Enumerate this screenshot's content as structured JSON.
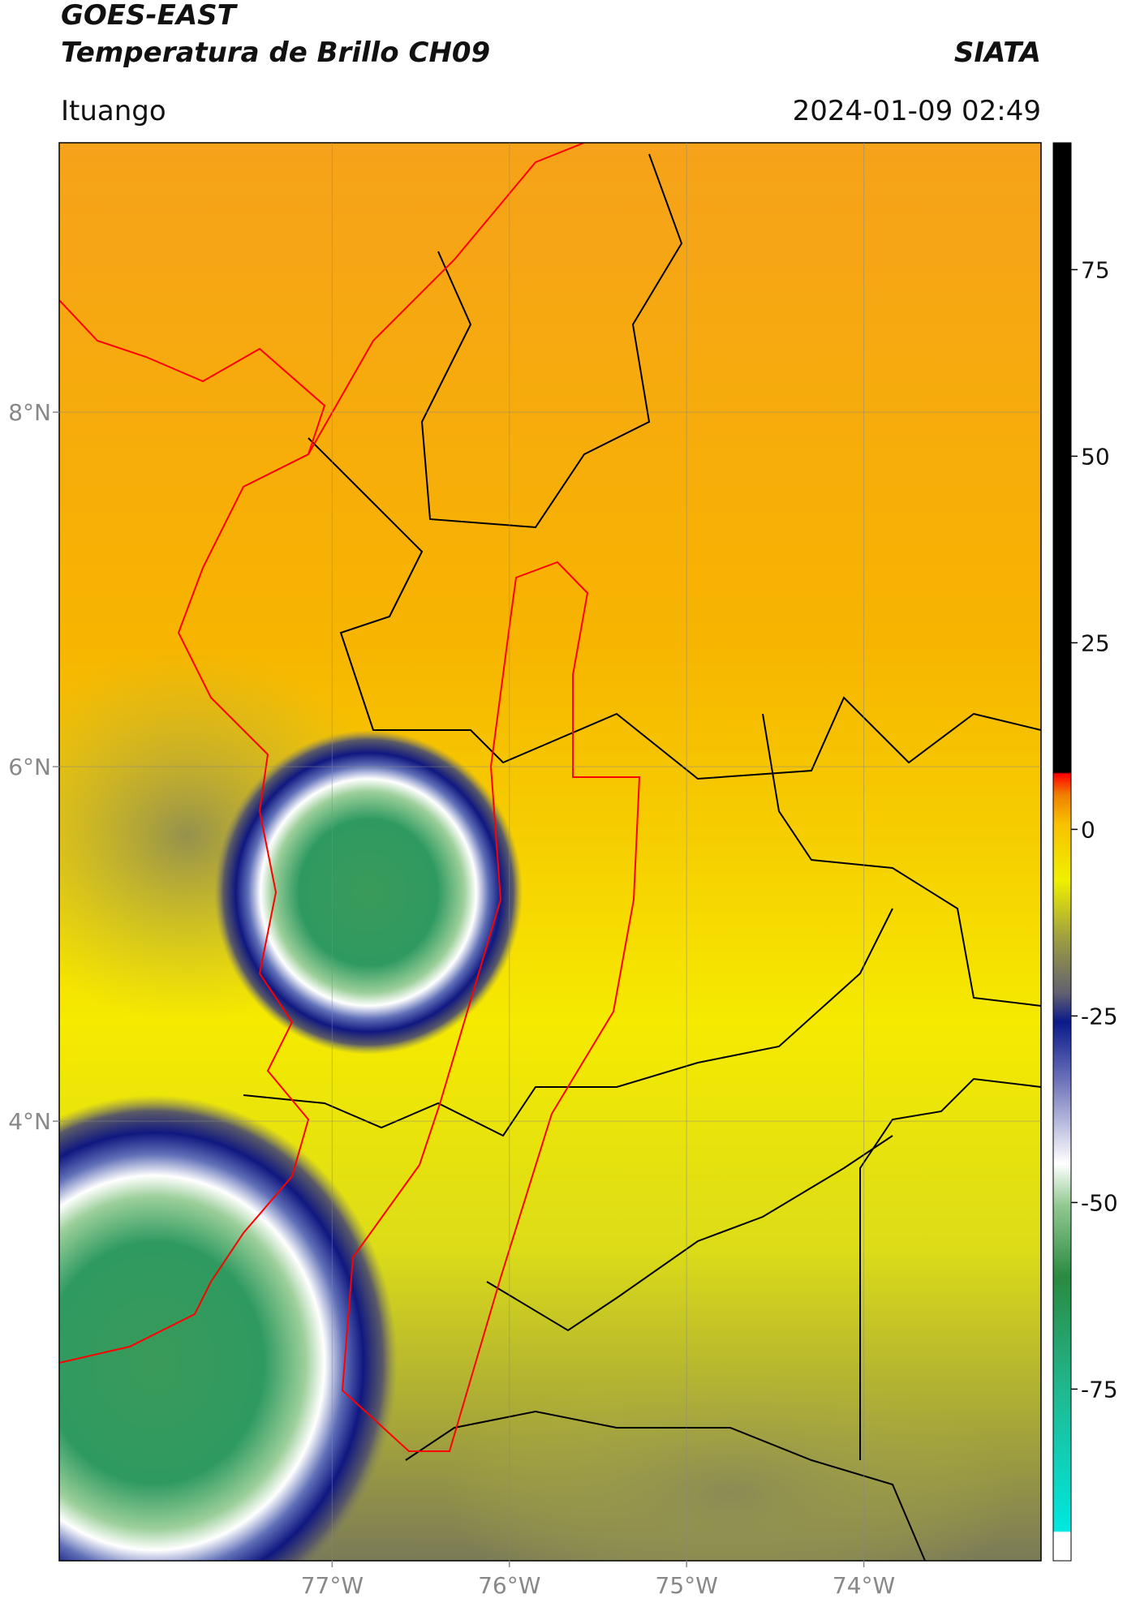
{
  "header": {
    "title": "GOES-EAST",
    "subtitle": "Temperatura de Brillo CH09",
    "org": "SIATA",
    "location": "Ituango",
    "timestamp": "2024-01-09 02:49"
  },
  "map": {
    "xlim": [
      -78.54,
      -73.0
    ],
    "ylim": [
      1.52,
      9.52
    ],
    "xticks": [
      {
        "value": -77,
        "label": "77°W"
      },
      {
        "value": -76,
        "label": "76°W"
      },
      {
        "value": -75,
        "label": "75°W"
      },
      {
        "value": -74,
        "label": "74°W"
      }
    ],
    "yticks": [
      {
        "value": 8,
        "label": "8°N"
      },
      {
        "value": 6,
        "label": "6°N"
      },
      {
        "value": 4,
        "label": "4°N"
      }
    ]
  },
  "colorbar": {
    "lim": [
      -98,
      92
    ],
    "ticks": [
      -75,
      -50,
      -25,
      0,
      25,
      50,
      75
    ]
  }
}
